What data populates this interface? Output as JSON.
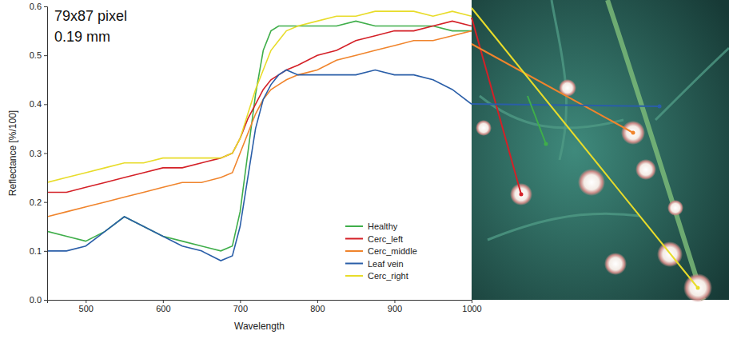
{
  "chart_data": {
    "type": "line",
    "annotations": [
      "79x87 pixel",
      "0.19 mm"
    ],
    "x_label": "Wavelength",
    "y_label": "Reflectance [%/100]",
    "x": [
      450,
      475,
      500,
      525,
      550,
      575,
      600,
      625,
      650,
      675,
      690,
      700,
      710,
      720,
      730,
      740,
      750,
      760,
      775,
      800,
      825,
      850,
      875,
      900,
      925,
      950,
      975,
      1000
    ],
    "series": [
      {
        "name": "Healthy",
        "color": "#3fae4a",
        "values": [
          0.14,
          0.13,
          0.12,
          0.14,
          0.17,
          0.15,
          0.13,
          0.12,
          0.11,
          0.1,
          0.11,
          0.18,
          0.3,
          0.42,
          0.51,
          0.55,
          0.56,
          0.56,
          0.56,
          0.56,
          0.56,
          0.57,
          0.56,
          0.56,
          0.56,
          0.56,
          0.55,
          0.55
        ]
      },
      {
        "name": "Cerc_left",
        "color": "#d42027",
        "values": [
          0.22,
          0.22,
          0.23,
          0.24,
          0.25,
          0.26,
          0.27,
          0.27,
          0.28,
          0.29,
          0.3,
          0.33,
          0.37,
          0.4,
          0.43,
          0.45,
          0.46,
          0.47,
          0.48,
          0.5,
          0.51,
          0.53,
          0.54,
          0.55,
          0.55,
          0.56,
          0.57,
          0.56
        ]
      },
      {
        "name": "Cerc_middle",
        "color": "#f0842c",
        "values": [
          0.17,
          0.18,
          0.19,
          0.2,
          0.21,
          0.22,
          0.23,
          0.24,
          0.24,
          0.25,
          0.26,
          0.3,
          0.34,
          0.38,
          0.41,
          0.43,
          0.44,
          0.45,
          0.46,
          0.47,
          0.49,
          0.5,
          0.51,
          0.52,
          0.53,
          0.53,
          0.54,
          0.55
        ]
      },
      {
        "name": "Leaf vein",
        "color": "#2a5ea8",
        "values": [
          0.1,
          0.1,
          0.11,
          0.14,
          0.17,
          0.15,
          0.13,
          0.11,
          0.1,
          0.08,
          0.09,
          0.15,
          0.25,
          0.35,
          0.41,
          0.44,
          0.46,
          0.47,
          0.46,
          0.46,
          0.46,
          0.46,
          0.47,
          0.46,
          0.46,
          0.45,
          0.43,
          0.4
        ]
      },
      {
        "name": "Cerc_right",
        "color": "#e8dc2a",
        "values": [
          0.24,
          0.25,
          0.26,
          0.27,
          0.28,
          0.28,
          0.29,
          0.29,
          0.29,
          0.29,
          0.3,
          0.33,
          0.38,
          0.43,
          0.47,
          0.51,
          0.53,
          0.55,
          0.56,
          0.57,
          0.58,
          0.58,
          0.59,
          0.59,
          0.59,
          0.58,
          0.59,
          0.58
        ]
      }
    ],
    "xlim": [
      450,
      1000
    ],
    "xticks": [
      500,
      600,
      700,
      800,
      900,
      1000
    ],
    "ylim": [
      0,
      0.6
    ],
    "yticks": [
      {
        "value": 0,
        "label": "0.0"
      },
      0.1,
      0.2,
      0.3,
      0.4,
      0.5,
      0.6
    ],
    "grid": false,
    "legend": "lower right"
  }
}
